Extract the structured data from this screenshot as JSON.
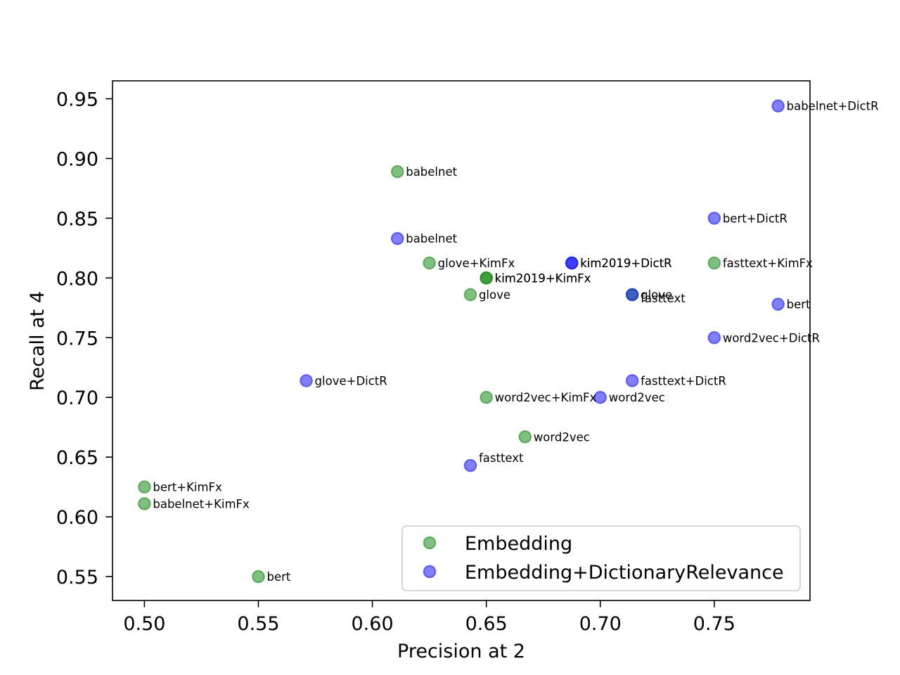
{
  "chart_data": {
    "type": "scatter",
    "xlabel": "Precision at 2",
    "ylabel": "Recall at 4",
    "xlim": [
      0.486,
      0.792
    ],
    "ylim": [
      0.53,
      0.965
    ],
    "xticks": [
      "0.50",
      "0.55",
      "0.60",
      "0.65",
      "0.70",
      "0.75"
    ],
    "yticks": [
      "0.55",
      "0.60",
      "0.65",
      "0.70",
      "0.75",
      "0.80",
      "0.85",
      "0.90",
      "0.95"
    ],
    "grid": false,
    "legend_position": "lower right",
    "series": [
      {
        "name": "Embedding",
        "color": "#008000",
        "points": [
          {
            "label": "babelnet",
            "x": 0.611,
            "y": 0.889
          },
          {
            "label": "glove+KimFx",
            "x": 0.625,
            "y": 0.8125
          },
          {
            "label": "kim2019+KimFx",
            "x": 0.65,
            "y": 0.8
          },
          {
            "label": "kim2019+KimFx",
            "x": 0.65,
            "y": 0.8
          },
          {
            "label": "glove",
            "x": 0.643,
            "y": 0.786
          },
          {
            "label": "fasttext",
            "x": 0.714,
            "y": 0.786
          },
          {
            "label": "fasttext+KimFx",
            "x": 0.75,
            "y": 0.8125
          },
          {
            "label": "word2vec+KimFx",
            "x": 0.65,
            "y": 0.7
          },
          {
            "label": "word2vec",
            "x": 0.667,
            "y": 0.667
          },
          {
            "label": "bert+KimFx",
            "x": 0.5,
            "y": 0.625
          },
          {
            "label": "babelnet+KimFx",
            "x": 0.5,
            "y": 0.611
          },
          {
            "label": "bert",
            "x": 0.55,
            "y": 0.55
          }
        ]
      },
      {
        "name": "Embedding+DictionaryRelevance",
        "color": "#0000ff",
        "points": [
          {
            "label": "babelnet+DictR",
            "x": 0.778,
            "y": 0.944
          },
          {
            "label": "bert+DictR",
            "x": 0.75,
            "y": 0.85
          },
          {
            "label": "babelnet",
            "x": 0.611,
            "y": 0.833
          },
          {
            "label": "kim2019+DictR",
            "x": 0.6875,
            "y": 0.8125
          },
          {
            "label": "kim2019+DictR",
            "x": 0.6875,
            "y": 0.8125
          },
          {
            "label": "glove",
            "x": 0.714,
            "y": 0.786
          },
          {
            "label": "bert",
            "x": 0.778,
            "y": 0.778
          },
          {
            "label": "word2vec+DictR",
            "x": 0.75,
            "y": 0.75
          },
          {
            "label": "glove+DictR",
            "x": 0.571,
            "y": 0.714
          },
          {
            "label": "fasttext+DictR",
            "x": 0.714,
            "y": 0.714
          },
          {
            "label": "word2vec",
            "x": 0.7,
            "y": 0.7
          },
          {
            "label": "fasttext",
            "x": 0.643,
            "y": 0.643
          }
        ]
      }
    ]
  }
}
